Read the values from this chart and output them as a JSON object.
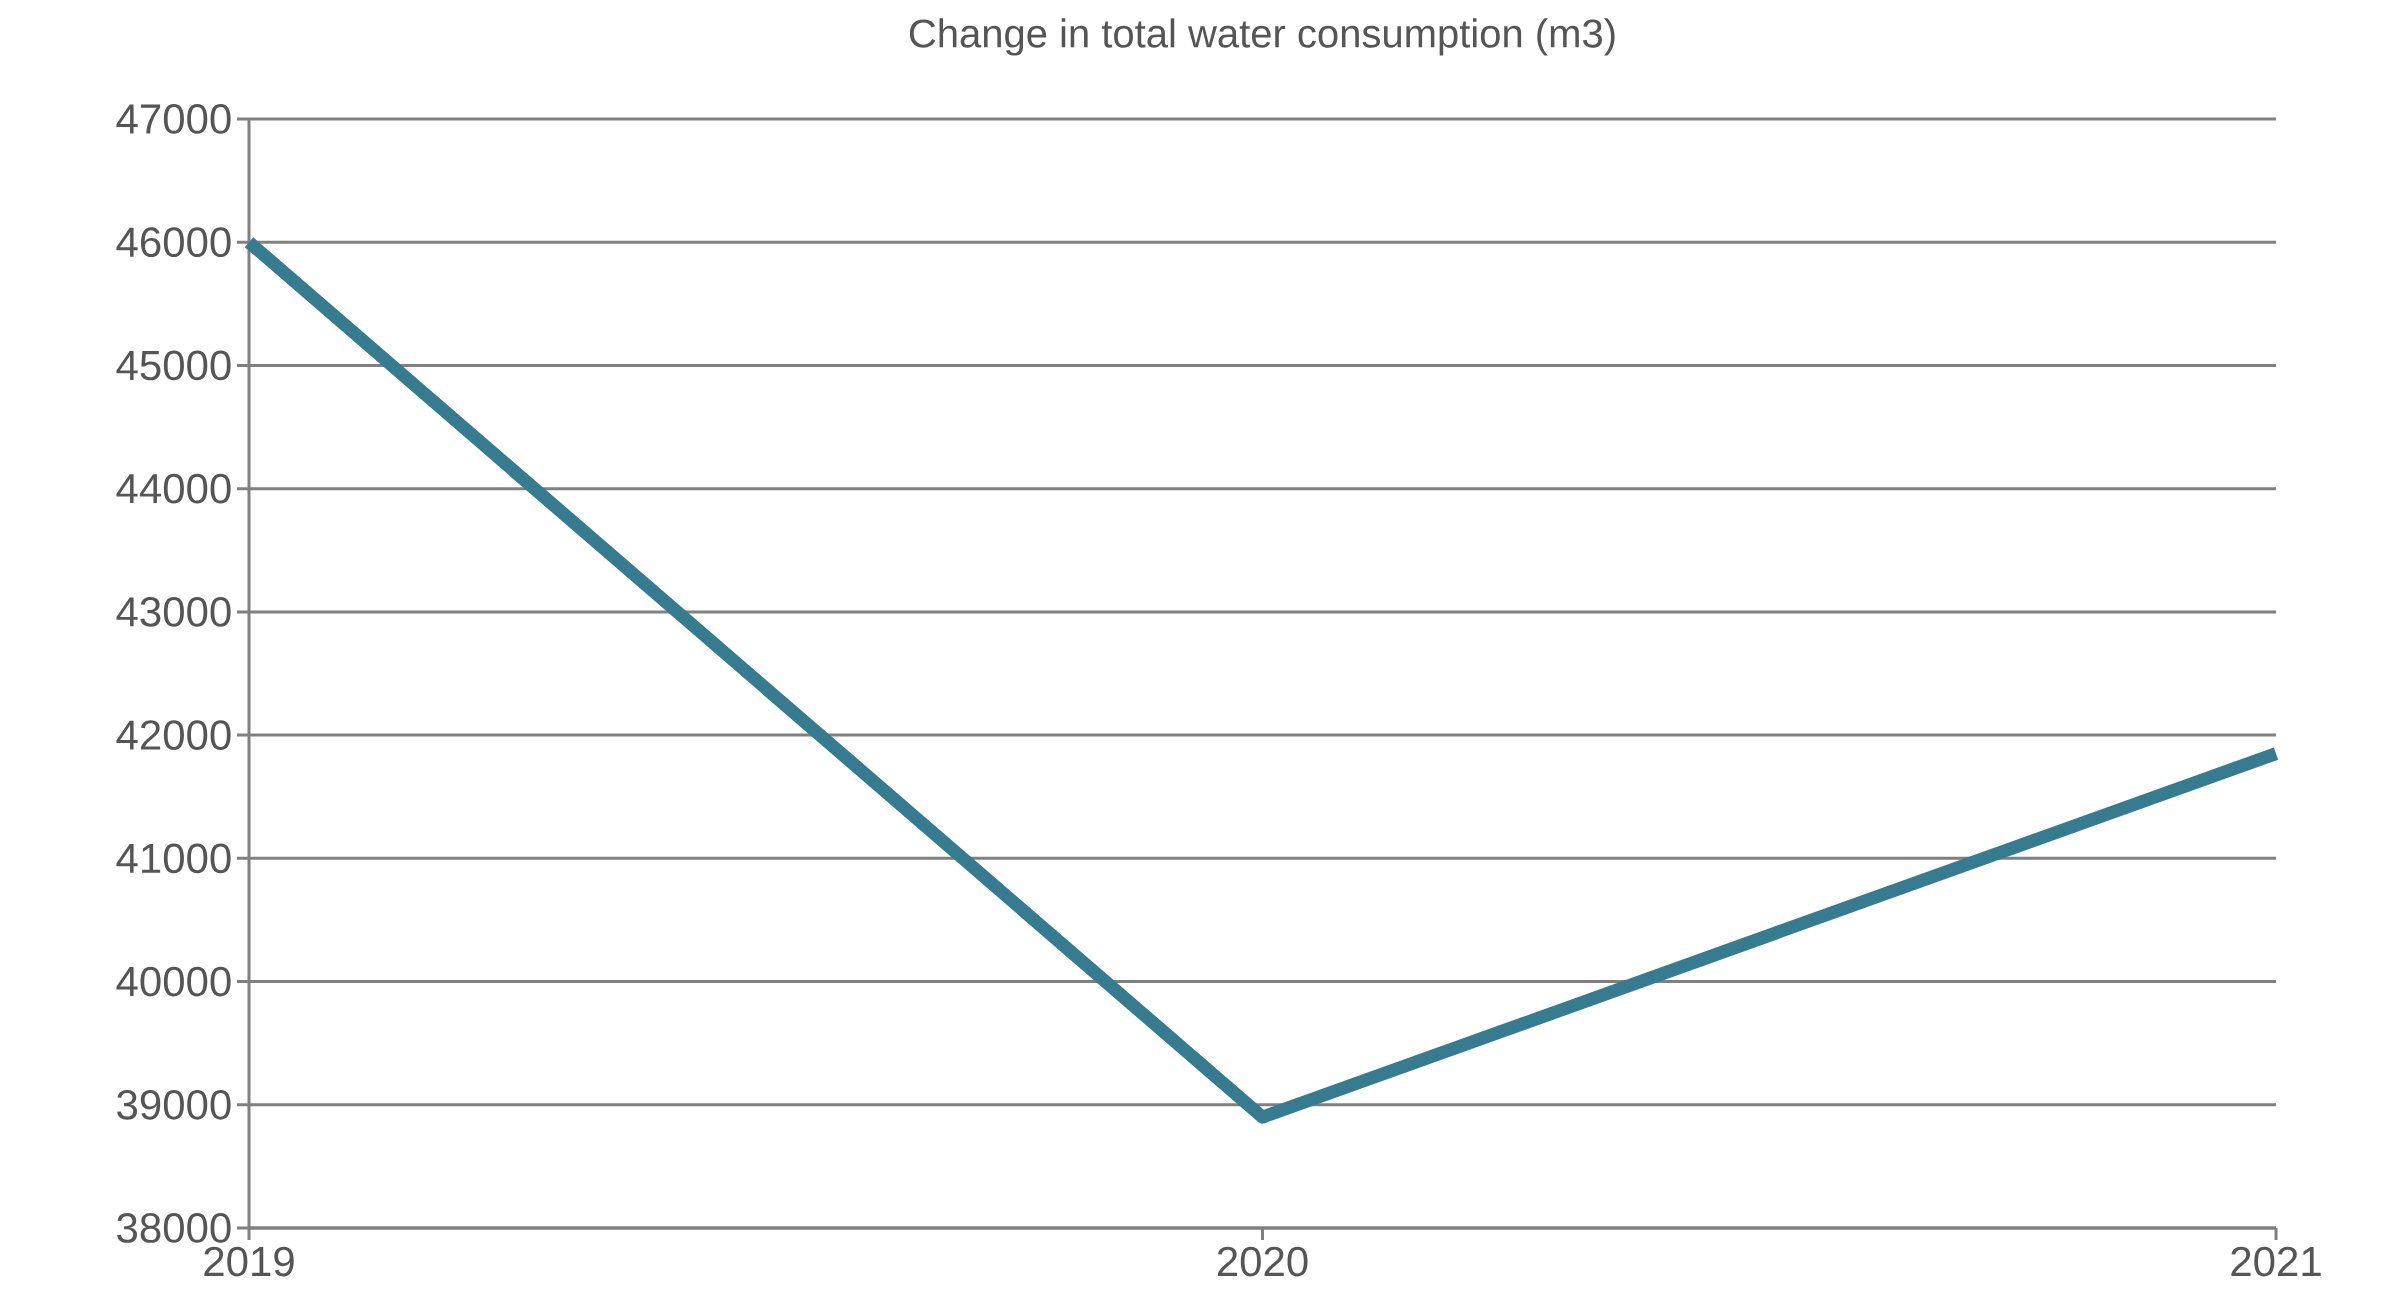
{
  "chart_data": {
    "type": "line",
    "title": "Change in total water consumption (m3)",
    "categories": [
      "2019",
      "2020",
      "2021"
    ],
    "series": [
      {
        "color": "#367b8f",
        "values": [
          46000,
          38900,
          41850
        ]
      }
    ],
    "ylim": [
      38000,
      47000
    ],
    "yticks": [
      38000,
      39000,
      40000,
      41000,
      42000,
      43000,
      44000,
      45000,
      46000,
      47000
    ],
    "grid": "y",
    "legend": false,
    "marker": "none",
    "line_style": "solid"
  }
}
